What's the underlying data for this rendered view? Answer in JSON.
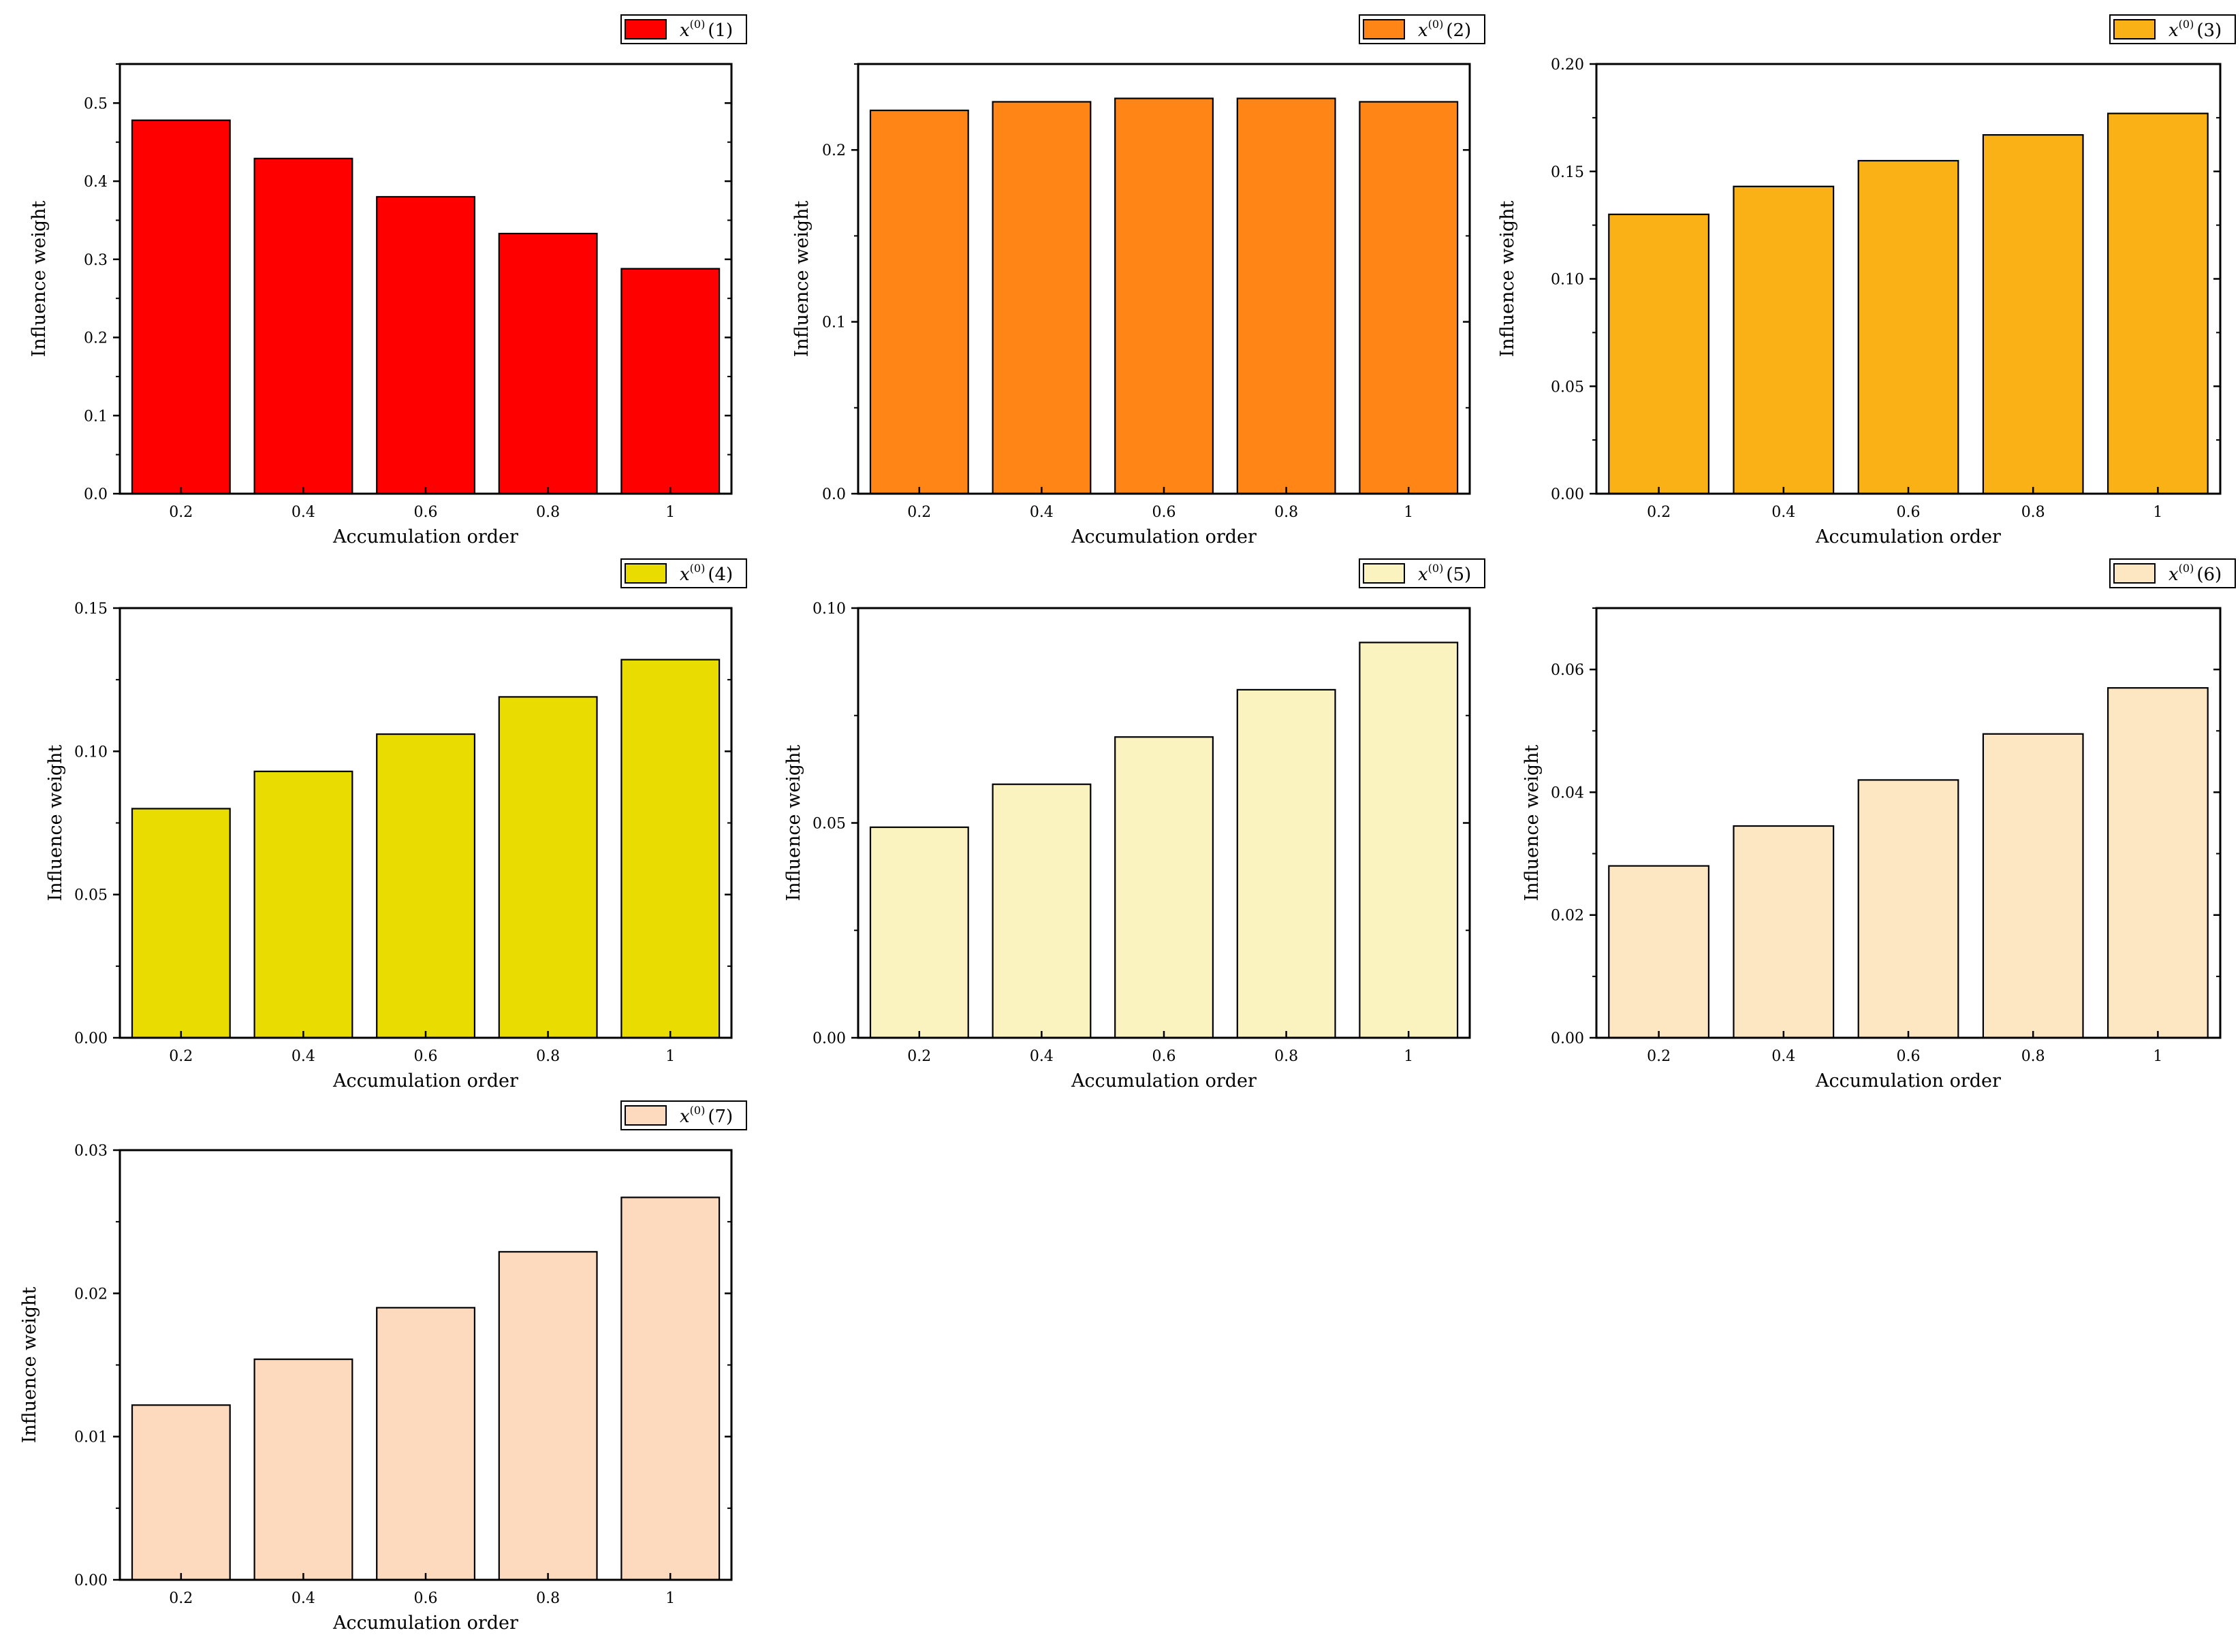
{
  "chart_data": [
    {
      "type": "bar",
      "legend": {
        "var": "x",
        "sup": "(0)",
        "idx": "(1)"
      },
      "color": "#ff0000",
      "categories": [
        "0.2",
        "0.4",
        "0.6",
        "0.8",
        "1"
      ],
      "values": [
        0.478,
        0.429,
        0.38,
        0.333,
        0.288
      ],
      "xlabel": "Accumulation order",
      "ylabel": "Influence weight",
      "ylim": [
        0,
        0.55
      ],
      "yticks": [
        "0.0",
        "0.1",
        "0.2",
        "0.3",
        "0.4",
        "0.5"
      ]
    },
    {
      "type": "bar",
      "legend": {
        "var": "x",
        "sup": "(0)",
        "idx": "(2)"
      },
      "color": "#ff8517",
      "categories": [
        "0.2",
        "0.4",
        "0.6",
        "0.8",
        "1"
      ],
      "values": [
        0.223,
        0.228,
        0.23,
        0.23,
        0.228
      ],
      "xlabel": "Accumulation order",
      "ylabel": "Influence weight",
      "ylim": [
        0,
        0.25
      ],
      "yticks": [
        "0.0",
        "0.1",
        "0.2"
      ]
    },
    {
      "type": "bar",
      "legend": {
        "var": "x",
        "sup": "(0)",
        "idx": "(3)"
      },
      "color": "#f9b115",
      "categories": [
        "0.2",
        "0.4",
        "0.6",
        "0.8",
        "1"
      ],
      "values": [
        0.13,
        0.143,
        0.155,
        0.167,
        0.177
      ],
      "xlabel": "Accumulation order",
      "ylabel": "Influence weight",
      "ylim": [
        0,
        0.2
      ],
      "yticks": [
        "0.00",
        "0.05",
        "0.10",
        "0.15",
        "0.20"
      ]
    },
    {
      "type": "bar",
      "legend": {
        "var": "x",
        "sup": "(0)",
        "idx": "(4)"
      },
      "color": "#e8dc00",
      "categories": [
        "0.2",
        "0.4",
        "0.6",
        "0.8",
        "1"
      ],
      "values": [
        0.08,
        0.093,
        0.106,
        0.119,
        0.132
      ],
      "xlabel": "Accumulation order",
      "ylabel": "Influence weight",
      "ylim": [
        0,
        0.15
      ],
      "yticks": [
        "0.00",
        "0.05",
        "0.10",
        "0.15"
      ]
    },
    {
      "type": "bar",
      "legend": {
        "var": "x",
        "sup": "(0)",
        "idx": "(5)"
      },
      "color": "#faf3c0",
      "categories": [
        "0.2",
        "0.4",
        "0.6",
        "0.8",
        "1"
      ],
      "values": [
        0.049,
        0.059,
        0.07,
        0.081,
        0.092
      ],
      "xlabel": "Accumulation order",
      "ylabel": "Influence weight",
      "ylim": [
        0,
        0.1
      ],
      "yticks": [
        "0.00",
        "0.05",
        "0.10"
      ]
    },
    {
      "type": "bar",
      "legend": {
        "var": "x",
        "sup": "(0)",
        "idx": "(6)"
      },
      "color": "#fde6c2",
      "categories": [
        "0.2",
        "0.4",
        "0.6",
        "0.8",
        "1"
      ],
      "values": [
        0.028,
        0.0345,
        0.042,
        0.0495,
        0.057
      ],
      "xlabel": "Accumulation order",
      "ylabel": "Influence weight",
      "ylim": [
        0,
        0.07
      ],
      "yticks": [
        "0.00",
        "0.02",
        "0.04",
        "0.06"
      ]
    },
    {
      "type": "bar",
      "legend": {
        "var": "x",
        "sup": "(0)",
        "idx": "(7)"
      },
      "color": "#fdd9bd",
      "categories": [
        "0.2",
        "0.4",
        "0.6",
        "0.8",
        "1"
      ],
      "values": [
        0.0122,
        0.0154,
        0.019,
        0.0229,
        0.0267
      ],
      "xlabel": "Accumulation order",
      "ylabel": "Influence weight",
      "ylim": [
        0,
        0.03
      ],
      "yticks": [
        "0.00",
        "0.01",
        "0.02",
        "0.03"
      ]
    }
  ]
}
